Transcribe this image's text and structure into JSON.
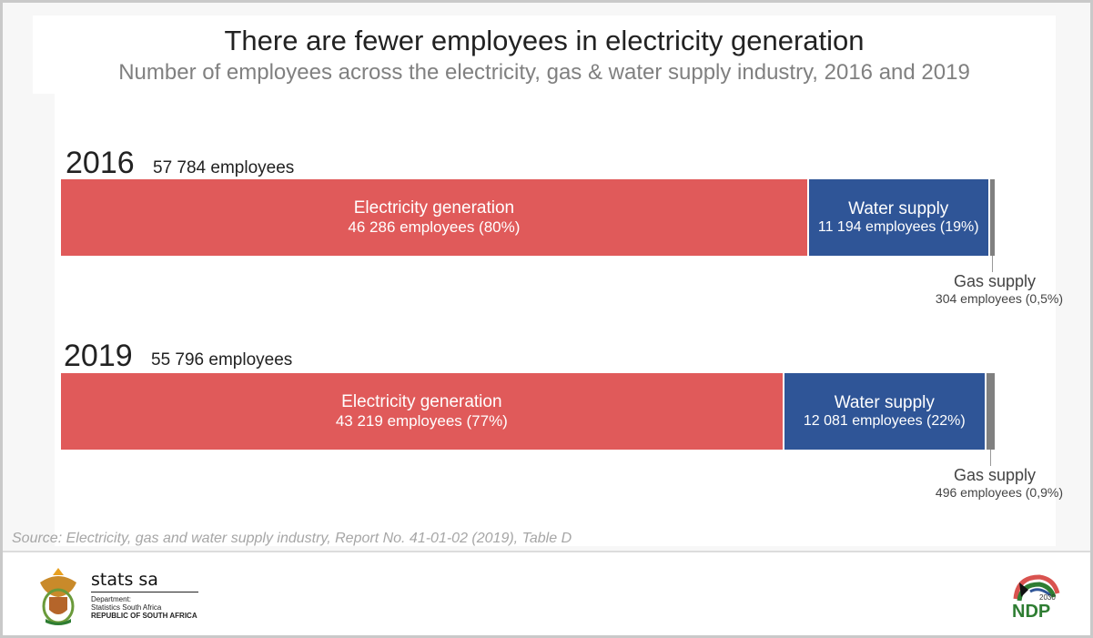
{
  "header": {
    "title": "There are fewer employees in electricity generation",
    "subtitle": "Number of employees across the electricity, gas & water supply industry, 2016 and 2019"
  },
  "chart_data": {
    "type": "bar",
    "orientation": "horizontal-stacked-100",
    "title": "There are fewer employees in electricity generation",
    "subtitle": "Number of employees across the electricity, gas & water supply industry, 2016 and 2019",
    "categories": [
      "2016",
      "2019"
    ],
    "totals": [
      {
        "year": "2016",
        "label": "57 784 employees",
        "value": 57784
      },
      {
        "year": "2019",
        "label": "55 796 employees",
        "value": 55796
      }
    ],
    "series": [
      {
        "name": "Electricity generation",
        "color": "#e05a5a",
        "values": [
          46286,
          43219
        ],
        "labels": [
          "46 286 employees (80%)",
          "43 219 employees (77%)"
        ]
      },
      {
        "name": "Water supply",
        "color": "#2f5597",
        "values": [
          11194,
          12081
        ],
        "labels": [
          "11 194 employees (19%)",
          "12 081 employees (22%)"
        ]
      },
      {
        "name": "Gas supply",
        "color": "#808080",
        "values": [
          304,
          496
        ],
        "labels": [
          "304 employees (0,5%)",
          "496 employees (0,9%)"
        ]
      }
    ]
  },
  "source": "Source: Electricity, gas and water supply industry, Report No. 41-01-02 (2019), Table D",
  "footer": {
    "brand": "stats sa",
    "dept_line1": "Department:",
    "dept_line2": "Statistics South Africa",
    "dept_line3": "REPUBLIC OF SOUTH AFRICA",
    "ndp_logo_text": "NDP 2030",
    "ndp_text": "NDP",
    "ndp_year": "2030"
  }
}
